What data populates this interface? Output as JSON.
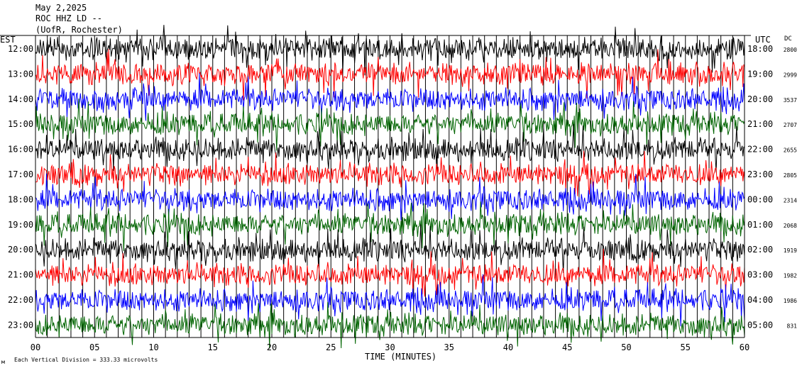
{
  "header": {
    "line1": "May 2,2025",
    "line2": "ROC HHZ LD --",
    "line3": "(UofR, Rochester)"
  },
  "left_axis_title": "EST",
  "right_axis_title": "UTC",
  "dc_title": "DC",
  "footer": {
    "scale_icon_label": "м",
    "scale_text": "Each Vertical Division =  333.33 microvolts"
  },
  "colors": {
    "trace_cycle": [
      "#000000",
      "#ff0000",
      "#0000ff",
      "#006400"
    ],
    "frame": "#000000",
    "background": "#ffffff"
  },
  "chart_data": {
    "type": "line",
    "title": "May 2,2025",
    "subtitle": "ROC HHZ LD --",
    "xlabel": "TIME (MINUTES)",
    "ylabel": "",
    "x_ticks": [
      "00",
      "05",
      "10",
      "15",
      "20",
      "25",
      "30",
      "35",
      "40",
      "45",
      "50",
      "55",
      "60"
    ],
    "xlim": [
      0,
      60
    ],
    "grid": "vertical-every-minute",
    "rows": [
      {
        "est": "12:00",
        "utc": "18:00",
        "dc": "2800",
        "color": "#000000"
      },
      {
        "est": "13:00",
        "utc": "19:00",
        "dc": "2999",
        "color": "#ff0000"
      },
      {
        "est": "14:00",
        "utc": "20:00",
        "dc": "3537",
        "color": "#0000ff"
      },
      {
        "est": "15:00",
        "utc": "21:00",
        "dc": "2707",
        "color": "#006400"
      },
      {
        "est": "16:00",
        "utc": "22:00",
        "dc": "2655",
        "color": "#000000"
      },
      {
        "est": "17:00",
        "utc": "23:00",
        "dc": "2805",
        "color": "#ff0000"
      },
      {
        "est": "18:00",
        "utc": "00:00",
        "dc": "2314",
        "color": "#0000ff"
      },
      {
        "est": "19:00",
        "utc": "01:00",
        "dc": "2068",
        "color": "#006400"
      },
      {
        "est": "20:00",
        "utc": "02:00",
        "dc": "1919",
        "color": "#000000"
      },
      {
        "est": "21:00",
        "utc": "03:00",
        "dc": "1982",
        "color": "#ff0000"
      },
      {
        "est": "22:00",
        "utc": "04:00",
        "dc": "1986",
        "color": "#0000ff"
      },
      {
        "est": "23:00",
        "utc": "05:00",
        "dc": "831",
        "color": "#006400"
      }
    ]
  }
}
